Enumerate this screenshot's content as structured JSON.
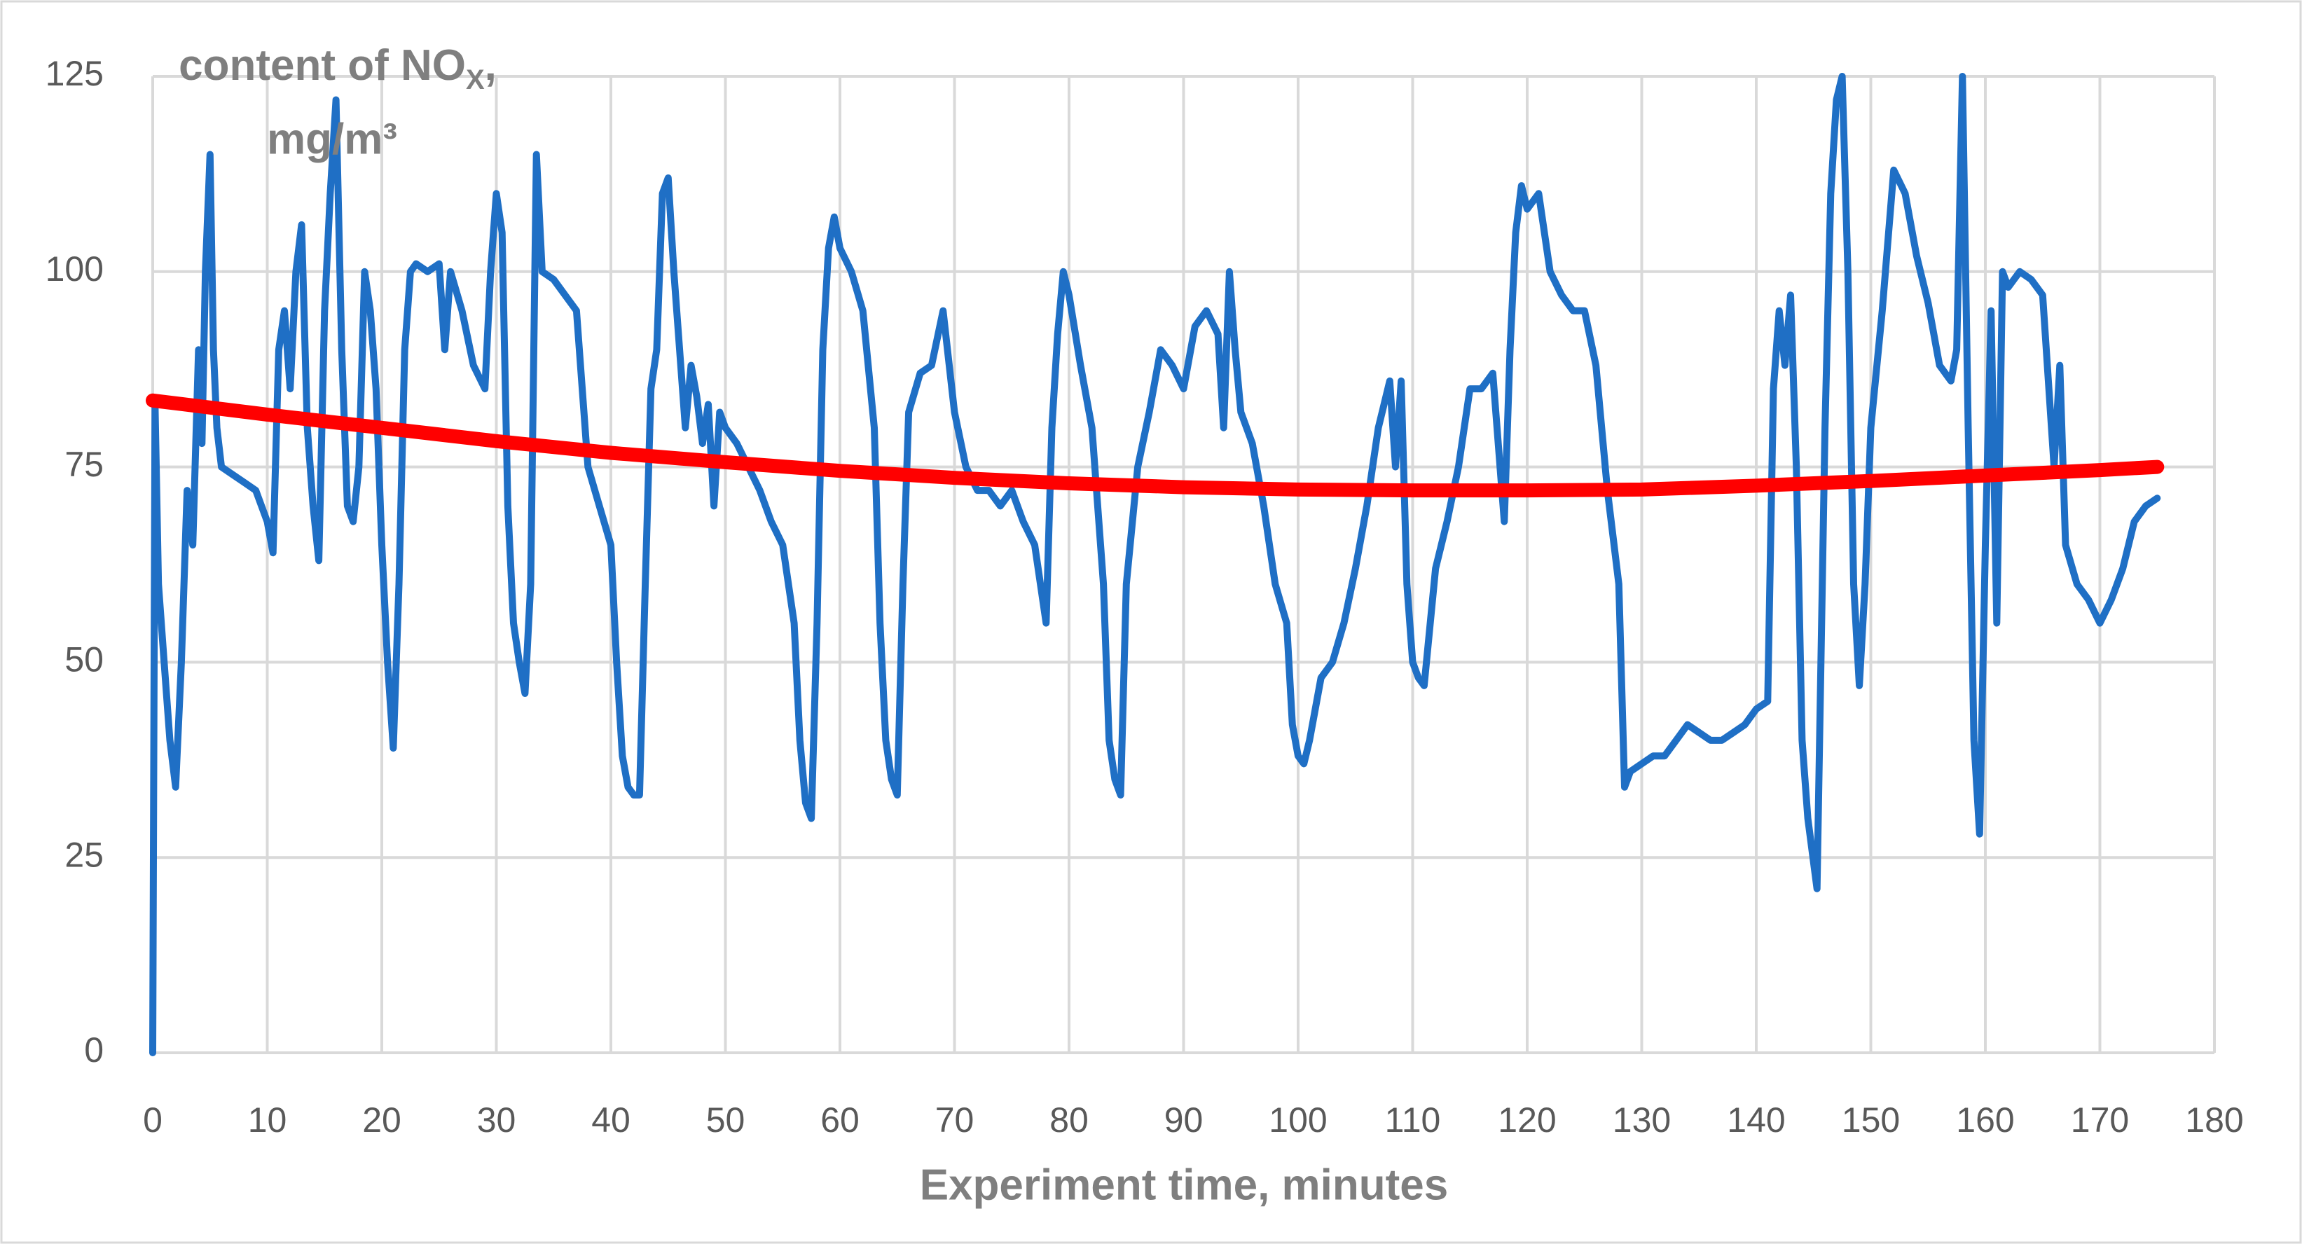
{
  "chart_data": {
    "type": "line",
    "y_label": {
      "main": "content of NO",
      "sub": "X",
      "tail": ",",
      "line2": "mg/m³"
    },
    "x_label": "Experiment time, minutes",
    "xlim": [
      0,
      180
    ],
    "xticks": [
      0,
      10,
      20,
      30,
      40,
      50,
      60,
      70,
      80,
      90,
      100,
      110,
      120,
      130,
      140,
      150,
      160,
      170,
      180
    ],
    "ylim": [
      0,
      125
    ],
    "yticks": [
      0,
      25,
      50,
      75,
      100,
      125
    ],
    "grid": true,
    "series": [
      {
        "color": "#1f6fc5",
        "x": [
          0,
          0.2,
          0.5,
          1,
          1.5,
          2,
          2.5,
          3,
          3.5,
          4,
          4.3,
          4.6,
          5,
          5.3,
          5.6,
          6,
          7,
          8,
          9,
          10,
          10.5,
          11,
          11.5,
          12,
          12.5,
          13,
          13.5,
          14,
          14.5,
          15,
          15.5,
          16,
          16.5,
          17,
          17.5,
          18,
          18.5,
          19,
          19.5,
          20,
          20.5,
          21,
          21.5,
          22,
          22.5,
          23,
          24,
          25,
          25.5,
          26,
          27,
          28,
          29,
          29.5,
          30,
          30.5,
          31,
          31.5,
          32,
          32.5,
          33,
          33.5,
          34,
          35,
          36,
          37,
          38,
          39,
          40,
          40.5,
          41,
          41.5,
          42,
          42.5,
          43,
          43.5,
          44,
          44.5,
          45,
          45.5,
          46,
          46.5,
          47,
          47.5,
          48,
          48.5,
          49,
          49.5,
          50,
          51,
          52,
          53,
          54,
          55,
          56,
          56.5,
          57,
          57.5,
          58,
          58.5,
          59,
          59.5,
          60,
          61,
          62,
          63,
          63.5,
          64,
          64.5,
          65,
          65.5,
          66,
          67,
          68,
          69,
          70,
          71,
          72,
          73,
          74,
          75,
          76,
          77,
          78,
          78.5,
          79,
          79.5,
          80,
          81,
          82,
          83,
          83.5,
          84,
          84.5,
          85,
          86,
          87,
          88,
          89,
          90,
          91,
          92,
          93,
          93.5,
          94,
          94.5,
          95,
          96,
          97,
          98,
          99,
          99.5,
          100,
          100.5,
          101,
          102,
          103,
          104,
          105,
          106,
          107,
          108,
          108.5,
          109,
          109.5,
          110,
          110.5,
          111,
          112,
          113,
          114,
          115,
          116,
          117,
          118,
          118.5,
          119,
          119.5,
          120,
          121,
          122,
          123,
          124,
          125,
          126,
          127,
          128,
          128.5,
          129,
          130,
          131,
          132,
          133,
          134,
          135,
          136,
          137,
          138,
          139,
          140,
          141,
          141.5,
          142,
          142.5,
          143,
          143.5,
          144,
          144.5,
          145.3,
          146,
          146.5,
          147,
          147.5,
          148,
          148.5,
          149,
          149.5,
          150,
          151,
          152,
          153,
          154,
          155,
          156,
          157,
          157.5,
          158,
          158.5,
          159,
          159.5,
          160,
          160.5,
          161,
          161.5,
          162,
          163,
          164,
          165,
          166,
          166.5,
          167,
          168,
          169,
          170,
          171,
          172,
          173,
          174,
          175
        ],
        "values": [
          0,
          83,
          60,
          50,
          40,
          34,
          50,
          72,
          65,
          90,
          78,
          100,
          115,
          90,
          80,
          75,
          74,
          73,
          72,
          68,
          64,
          90,
          95,
          85,
          100,
          106,
          80,
          70,
          63,
          95,
          110,
          122,
          90,
          70,
          68,
          75,
          100,
          95,
          85,
          65,
          50,
          39,
          60,
          90,
          100,
          101,
          100,
          101,
          90,
          100,
          95,
          88,
          85,
          100,
          110,
          105,
          70,
          55,
          50,
          46,
          60,
          115,
          100,
          99,
          97,
          95,
          75,
          70,
          65,
          50,
          38,
          34,
          33,
          33,
          60,
          85,
          90,
          110,
          112,
          100,
          90,
          80,
          88,
          84,
          78,
          83,
          70,
          82,
          80,
          78,
          75,
          72,
          68,
          65,
          55,
          40,
          32,
          30,
          55,
          90,
          103,
          107,
          103,
          100,
          95,
          80,
          55,
          40,
          35,
          33,
          60,
          82,
          87,
          88,
          95,
          82,
          75,
          72,
          72,
          70,
          72,
          68,
          65,
          55,
          80,
          92,
          100,
          97,
          88,
          80,
          60,
          40,
          35,
          33,
          60,
          75,
          82,
          90,
          88,
          85,
          93,
          95,
          92,
          80,
          100,
          90,
          82,
          78,
          70,
          60,
          55,
          42,
          38,
          37,
          40,
          48,
          50,
          55,
          62,
          70,
          80,
          86,
          75,
          86,
          60,
          50,
          48,
          47,
          62,
          68,
          75,
          85,
          85,
          87,
          68,
          90,
          105,
          111,
          108,
          110,
          100,
          97,
          95,
          95,
          88,
          72,
          60,
          34,
          36,
          37,
          38,
          38,
          40,
          42,
          41,
          40,
          40,
          41,
          42,
          44,
          45,
          85,
          95,
          88,
          97,
          75,
          40,
          30,
          21,
          80,
          110,
          122,
          125,
          100,
          60,
          47,
          60,
          80,
          95,
          113,
          110,
          102,
          96,
          88,
          86,
          90,
          125,
          80,
          40,
          28,
          65,
          95,
          55,
          100,
          98,
          100,
          99,
          97,
          75,
          88,
          65,
          60,
          58,
          55,
          58,
          62,
          68,
          70,
          71
        ]
      },
      {
        "color": "#ff0000",
        "x": [
          0,
          10,
          20,
          30,
          40,
          50,
          60,
          70,
          80,
          90,
          100,
          110,
          120,
          130,
          140,
          150,
          160,
          170,
          175
        ],
        "values": [
          83.5,
          81.7,
          80,
          78.3,
          76.8,
          75.6,
          74.5,
          73.6,
          72.9,
          72.4,
          72.1,
          72,
          72,
          72.1,
          72.6,
          73.2,
          73.9,
          74.6,
          75
        ]
      }
    ]
  }
}
